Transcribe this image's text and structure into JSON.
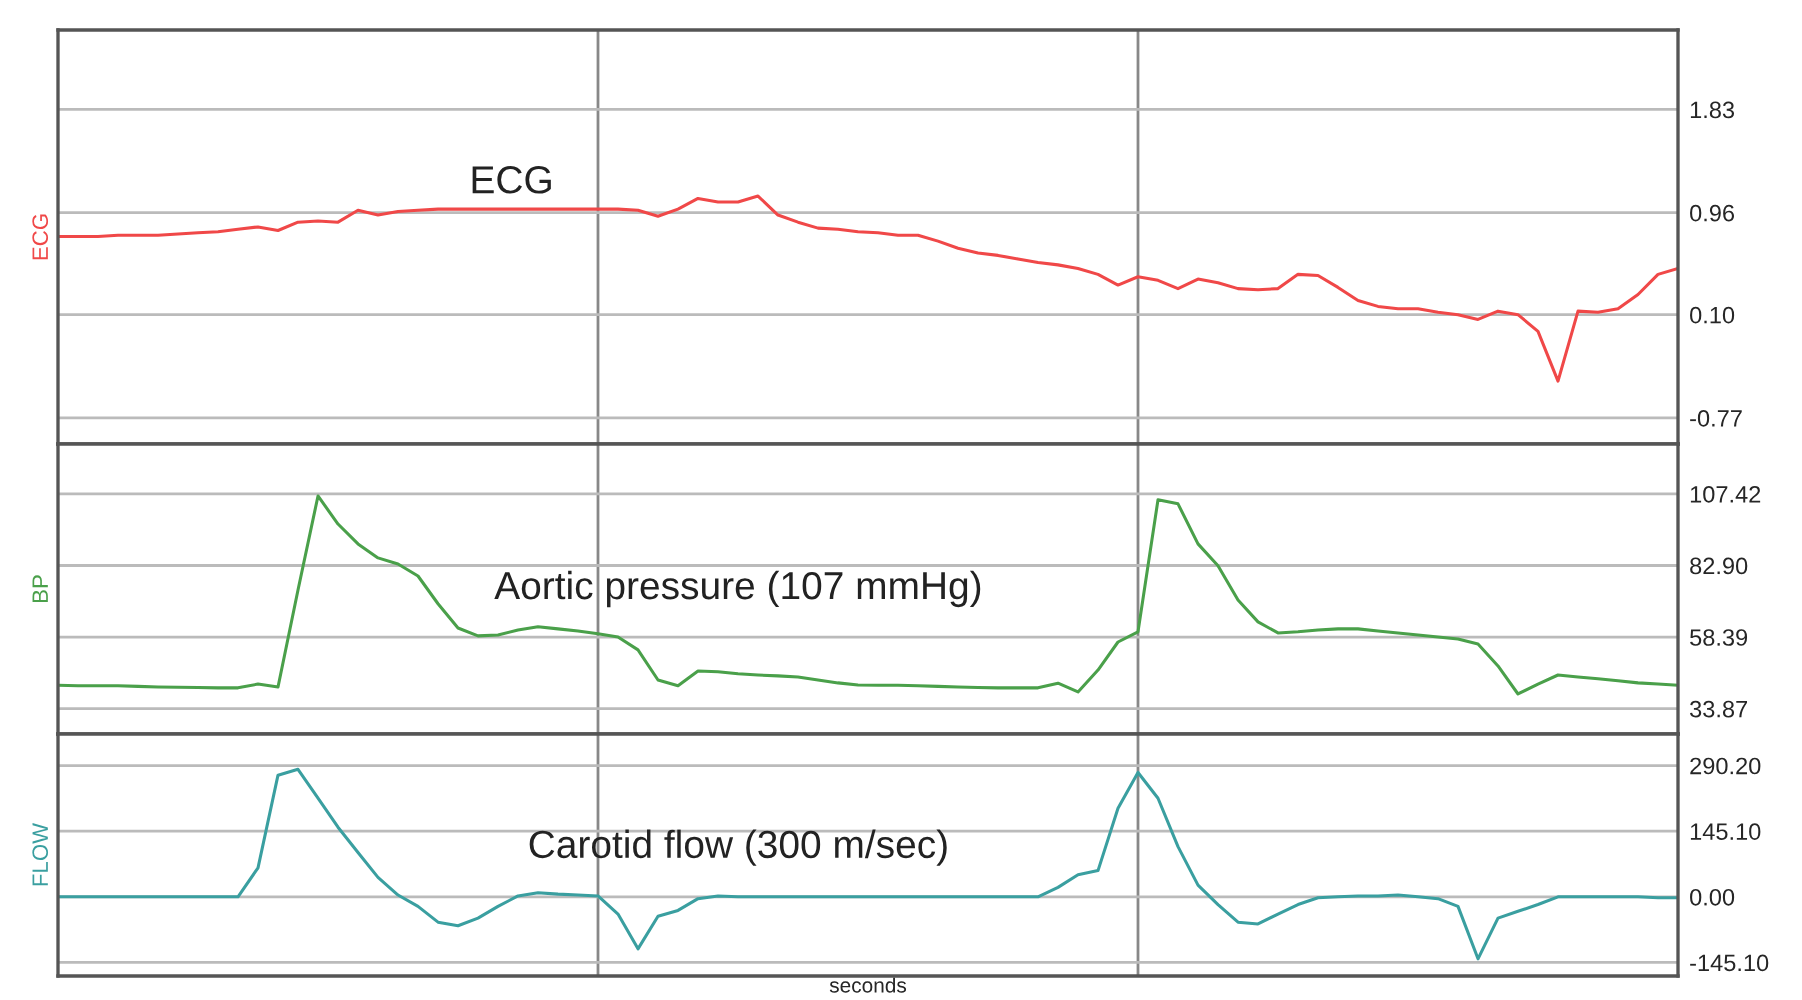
{
  "chart_data": [
    {
      "type": "line",
      "ylabel": "ECG",
      "categories": [
        null,
        null,
        null,
        null,
        null,
        null,
        null,
        null,
        null,
        null,
        null,
        null,
        null,
        null,
        null,
        null,
        null,
        null,
        null,
        null,
        null,
        null,
        null,
        null,
        null,
        null,
        null,
        null,
        null,
        null,
        null,
        null,
        null,
        null,
        null,
        null,
        null,
        null,
        null,
        null,
        null,
        null,
        null,
        null,
        null,
        null,
        null,
        null,
        null,
        null,
        null,
        null,
        null,
        null,
        null,
        null,
        null,
        null,
        null,
        null,
        null,
        null,
        null,
        null,
        null,
        null,
        null,
        null,
        null,
        null,
        null,
        null,
        null,
        null,
        null,
        null,
        null,
        null,
        null,
        null,
        null,
        null
      ],
      "series": [
        {
          "name": "ECG",
          "color": "#f04848",
          "values": [
            0.76,
            0.76,
            0.76,
            0.77,
            0.77,
            0.77,
            0.78,
            0.79,
            0.8,
            0.82,
            0.84,
            0.81,
            0.88,
            0.89,
            0.88,
            0.98,
            0.94,
            0.97,
            0.98,
            0.99,
            0.99,
            0.99,
            0.99,
            0.99,
            0.99,
            0.99,
            0.99,
            0.99,
            0.99,
            0.98,
            0.93,
            0.99,
            1.08,
            1.05,
            1.05,
            1.1,
            0.94,
            0.88,
            0.83,
            0.82,
            0.8,
            0.79,
            0.77,
            0.77,
            0.72,
            0.66,
            0.62,
            0.6,
            0.57,
            0.54,
            0.52,
            0.49,
            0.44,
            0.35,
            0.42,
            0.39,
            0.32,
            0.4,
            0.37,
            0.32,
            0.31,
            0.32,
            0.44,
            0.43,
            0.33,
            0.22,
            0.17,
            0.15,
            0.15,
            0.12,
            0.1,
            0.06,
            0.13,
            0.1,
            -0.04,
            -0.46,
            0.13,
            0.12,
            0.15,
            0.27,
            0.44,
            0.49
          ]
        }
      ],
      "ylim": [
        -0.99,
        2.5
      ],
      "yticks": [
        {
          "value": 1.83,
          "label": "1.83"
        },
        {
          "value": 0.96,
          "label": "0.96"
        },
        {
          "value": 0.1,
          "label": "0.10"
        },
        {
          "value": -0.77,
          "label": "-0.77"
        }
      ],
      "grid": true,
      "tick_labels": "y"
    },
    {
      "type": "line",
      "ylabel": "BP",
      "categories": [
        null,
        null,
        null,
        null,
        null,
        null,
        null,
        null,
        null,
        null,
        null,
        null,
        null,
        null,
        null,
        null,
        null,
        null,
        null,
        null,
        null,
        null,
        null,
        null,
        null,
        null,
        null,
        null,
        null,
        null,
        null,
        null,
        null,
        null,
        null,
        null,
        null,
        null,
        null,
        null,
        null,
        null,
        null,
        null,
        null,
        null,
        null,
        null,
        null,
        null,
        null,
        null,
        null,
        null,
        null,
        null,
        null,
        null,
        null,
        null,
        null,
        null,
        null,
        null,
        null,
        null,
        null,
        null,
        null,
        null,
        null,
        null,
        null,
        null,
        null,
        null,
        null,
        null,
        null,
        null,
        null,
        null
      ],
      "series": [
        {
          "name": "Aortic pressure (107 mmHg)",
          "color": "#4aa04a",
          "values": [
            41.9,
            41.7,
            41.7,
            41.7,
            41.5,
            41.3,
            41.2,
            41.1,
            41.0,
            41.0,
            42.3,
            41.3,
            74.5,
            106.7,
            97.1,
            90.3,
            85.5,
            83.4,
            79.3,
            69.8,
            61.5,
            58.8,
            59.1,
            60.8,
            61.9,
            61.2,
            60.5,
            59.5,
            58.4,
            54.0,
            43.7,
            41.7,
            46.8,
            46.5,
            45.8,
            45.4,
            45.1,
            44.7,
            43.7,
            42.7,
            42.0,
            41.9,
            41.9,
            41.7,
            41.5,
            41.3,
            41.1,
            41.0,
            41.0,
            41.0,
            42.6,
            39.6,
            47.1,
            56.7,
            60.2,
            105.4,
            104.0,
            90.3,
            82.8,
            71.1,
            63.6,
            59.8,
            60.2,
            60.8,
            61.2,
            61.2,
            60.5,
            59.8,
            59.1,
            58.4,
            57.7,
            56.0,
            48.5,
            38.9,
            42.3,
            45.4,
            44.7,
            44.1,
            43.4,
            42.7,
            42.3,
            41.9
          ]
        }
      ],
      "ylim": [
        25.2,
        124.5
      ],
      "yticks": [
        {
          "value": 107.42,
          "label": "107.42"
        },
        {
          "value": 82.9,
          "label": "82.90"
        },
        {
          "value": 58.39,
          "label": "58.39"
        },
        {
          "value": 33.87,
          "label": "33.87"
        }
      ],
      "grid": true,
      "tick_labels": "y"
    },
    {
      "type": "line",
      "ylabel": "FLOW",
      "xlabel": "seconds",
      "categories": [
        null,
        null,
        null,
        null,
        null,
        null,
        null,
        null,
        null,
        null,
        null,
        null,
        null,
        null,
        null,
        null,
        null,
        null,
        null,
        null,
        null,
        null,
        null,
        null,
        null,
        null,
        null,
        null,
        null,
        null,
        null,
        null,
        null,
        null,
        null,
        null,
        null,
        null,
        null,
        null,
        null,
        null,
        null,
        null,
        null,
        null,
        null,
        null,
        null,
        null,
        null,
        null,
        null,
        null,
        null,
        null,
        null,
        null,
        null,
        null,
        null,
        null,
        null,
        null,
        null,
        null,
        null,
        null,
        null,
        null,
        null,
        null,
        null,
        null,
        null,
        null,
        null,
        null,
        null,
        null,
        null,
        null
      ],
      "series": [
        {
          "name": "Carotid flow (300 m/sec)",
          "color": "#3a9fa0",
          "values": [
            0,
            0,
            0,
            0,
            0,
            0,
            0,
            0,
            0,
            0,
            64,
            269,
            282,
            218,
            154,
            98,
            43,
            4,
            -21,
            -56,
            -64,
            -47,
            -21,
            2,
            9,
            6,
            4,
            2,
            -38,
            -115,
            -43,
            -30,
            -4,
            2,
            0,
            0,
            0,
            0,
            0,
            0,
            0,
            0,
            0,
            0,
            0,
            0,
            0,
            0,
            0,
            0,
            21,
            49,
            58,
            196,
            275,
            218,
            111,
            26,
            -17,
            -56,
            -60,
            -38,
            -17,
            -2,
            0,
            2,
            2,
            4,
            0,
            -4,
            -21,
            -137,
            -47,
            -32,
            -17,
            0,
            0,
            0,
            0,
            0,
            -2,
            -2
          ]
        }
      ],
      "ylim": [
        -175,
        360
      ],
      "yticks": [
        {
          "value": 290.2,
          "label": "290.20"
        },
        {
          "value": 145.1,
          "label": "145.10"
        },
        {
          "value": 0,
          "label": "0.00"
        },
        {
          "value": -145.1,
          "label": "-145.10"
        }
      ],
      "grid": true,
      "tick_labels": "y"
    }
  ]
}
